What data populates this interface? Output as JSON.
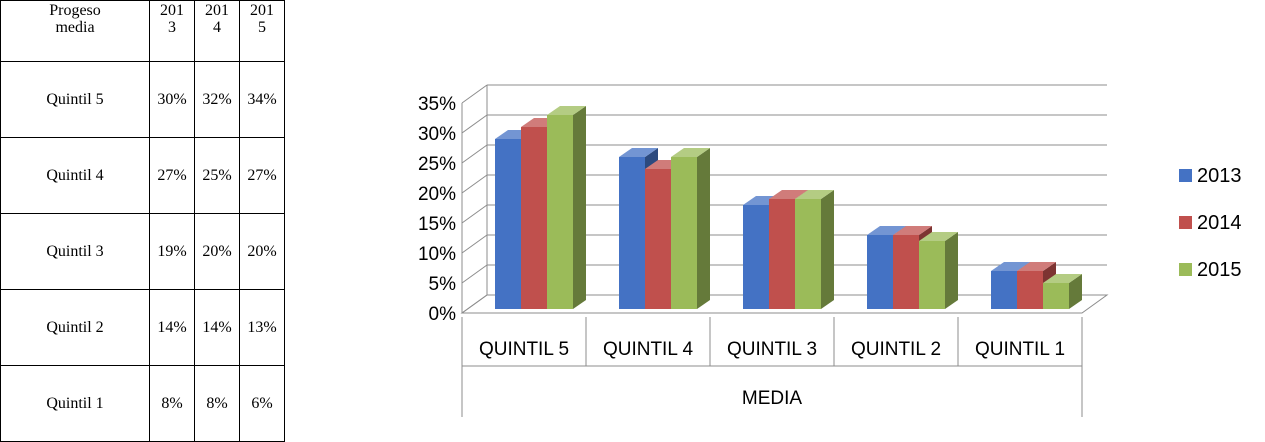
{
  "table": {
    "header": [
      "Progeso\nmedia",
      "201\n3",
      "201\n4",
      "201\n5"
    ],
    "rows": [
      [
        "Quintil 5",
        "30%",
        "32%",
        "34%"
      ],
      [
        "Quintil 4",
        "27%",
        "25%",
        "27%"
      ],
      [
        "Quintil 3",
        "19%",
        "20%",
        "20%"
      ],
      [
        "Quintil 2",
        "14%",
        "14%",
        "13%"
      ],
      [
        "Quintil 1",
        "8%",
        "8%",
        "6%"
      ]
    ]
  },
  "chart_data": {
    "type": "bar",
    "title": "",
    "xlabel": "MEDIA",
    "ylabel": "",
    "categories": [
      "QUINTIL 5",
      "QUINTIL 4",
      "QUINTIL 3",
      "QUINTIL 2",
      "QUINTIL 1"
    ],
    "series": [
      {
        "name": "2013",
        "values": [
          30,
          27,
          19,
          14,
          8
        ],
        "color": "#4472C4"
      },
      {
        "name": "2014",
        "values": [
          32,
          25,
          20,
          14,
          8
        ],
        "color": "#C0504D"
      },
      {
        "name": "2015",
        "values": [
          34,
          27,
          20,
          13,
          6
        ],
        "color": "#9BBB59"
      }
    ],
    "yticks": [
      "0%",
      "5%",
      "10%",
      "15%",
      "20%",
      "25%",
      "30%",
      "35%"
    ],
    "ylim": [
      0,
      35
    ],
    "grid": true,
    "legend_position": "right",
    "style": "3d-clustered-column"
  }
}
